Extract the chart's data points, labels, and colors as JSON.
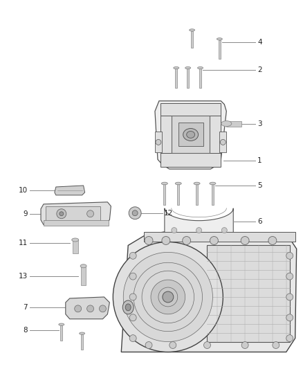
{
  "background_color": "#ffffff",
  "fig_width": 4.38,
  "fig_height": 5.33,
  "dpi": 100,
  "line_color": "#888888",
  "text_color": "#222222",
  "part_stroke": "#555555",
  "part_fill": "#e8e8e8",
  "part_fill2": "#d0d0d0",
  "bolt_fill": "#cccccc",
  "bolt_edge": "#888888",
  "label_fontsize": 7.5
}
